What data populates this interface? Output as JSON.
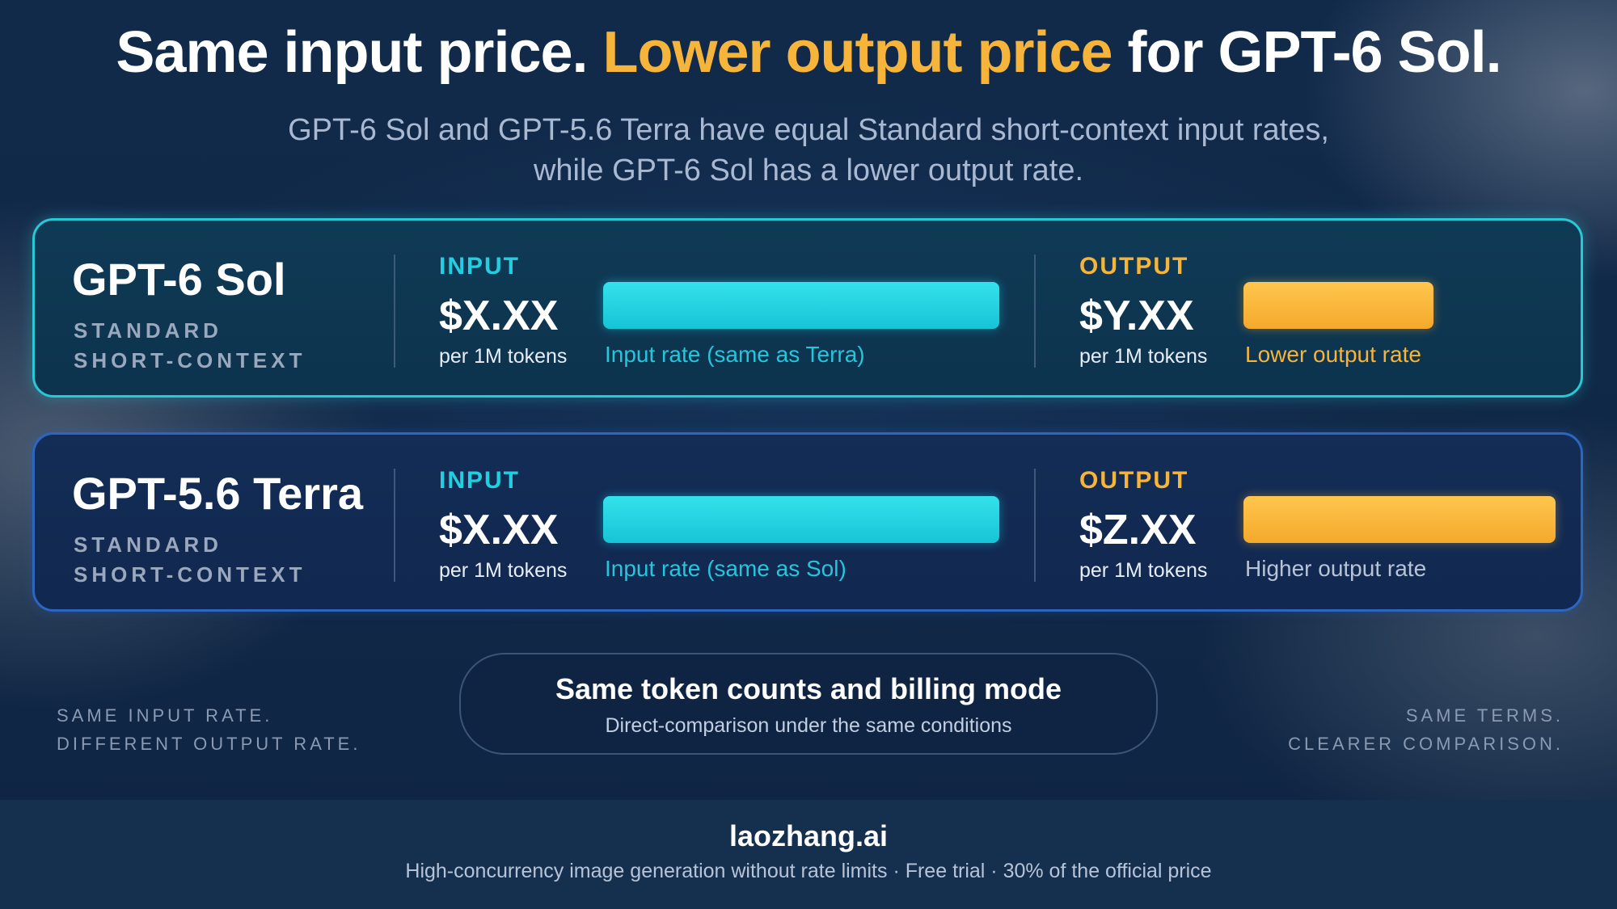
{
  "header": {
    "headline_part1": "Same input price. ",
    "headline_highlight": "Lower output price",
    "headline_part2": " for GPT-6 Sol.",
    "subhead_line1": "GPT-6 Sol and GPT-5.6 Terra have equal Standard short-context input rates,",
    "subhead_line2": "while GPT-6 Sol has a lower output rate."
  },
  "colors": {
    "input_accent": "#22cfe0",
    "output_accent": "#f7b43a",
    "sol_border": "#27c9d4",
    "terra_border": "#2c66c0"
  },
  "models": [
    {
      "name": "GPT-6 Sol",
      "tag_line1": "STANDARD",
      "tag_line2": "SHORT-CONTEXT",
      "input_label": "INPUT",
      "input_price": "$X.XX",
      "input_unit": "per 1M tokens",
      "input_bar_label": "Input rate (same as Terra)",
      "output_label": "OUTPUT",
      "output_price": "$Y.XX",
      "output_unit": "per 1M tokens",
      "output_bar_label": "Lower output rate",
      "output_bar_fraction": 0.61
    },
    {
      "name": "GPT-5.6 Terra",
      "tag_line1": "STANDARD",
      "tag_line2": "SHORT-CONTEXT",
      "input_label": "INPUT",
      "input_price": "$X.XX",
      "input_unit": "per 1M tokens",
      "input_bar_label": "Input rate (same as Sol)",
      "output_label": "OUTPUT",
      "output_price": "$Z.XX",
      "output_unit": "per 1M tokens",
      "output_bar_label": "Higher output rate",
      "output_bar_fraction": 1.0
    }
  ],
  "side_notes": {
    "left_line1": "SAME INPUT RATE.",
    "left_line2": "DIFFERENT OUTPUT RATE.",
    "right_line1": "SAME TERMS.",
    "right_line2": "CLEARER COMPARISON."
  },
  "center_pill": {
    "title": "Same token counts and billing mode",
    "subtitle": "Direct-comparison under the same conditions"
  },
  "footer": {
    "brand": "laozhang.ai",
    "tagline": "High-concurrency image generation without rate limits · Free trial · 30% of the official price"
  }
}
